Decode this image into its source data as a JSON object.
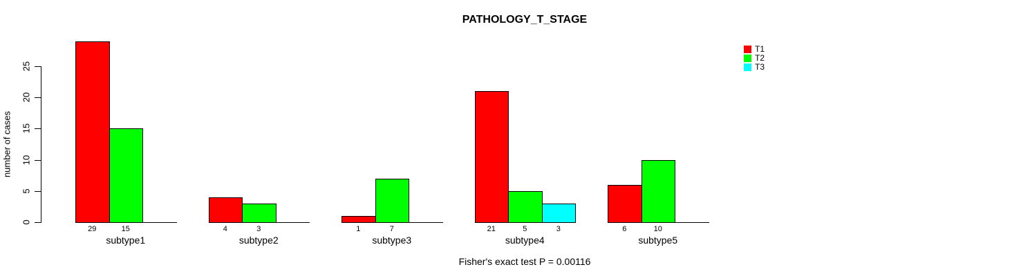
{
  "chart_data": {
    "type": "bar",
    "title": "PATHOLOGY_T_STAGE",
    "ylabel": "number of cases",
    "annotation": "Fisher's exact test P = 0.00116",
    "yticks": [
      0,
      5,
      10,
      15,
      20,
      25
    ],
    "ylim": [
      0,
      29
    ],
    "grid": false,
    "legend_position": "right",
    "categories": [
      "subtype1",
      "subtype2",
      "subtype3",
      "subtype4",
      "subtype5"
    ],
    "series": [
      {
        "name": "T1",
        "color": "#ff0000",
        "values": [
          29,
          4,
          1,
          21,
          6
        ]
      },
      {
        "name": "T2",
        "color": "#00ff00",
        "values": [
          15,
          3,
          7,
          5,
          10
        ]
      },
      {
        "name": "T3",
        "color": "#00ffff",
        "values": [
          null,
          null,
          null,
          3,
          null
        ]
      }
    ]
  }
}
